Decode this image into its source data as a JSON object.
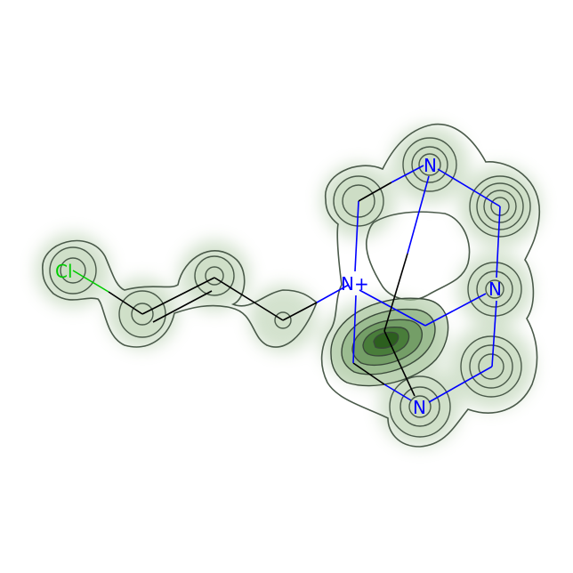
{
  "molecule": {
    "colors": {
      "carbon_bond": "#000000",
      "nitrogen": "#0000ff",
      "chlorine": "#00cc00",
      "density": "#2e6b1e",
      "contour": "#4a5a4a"
    },
    "atoms": [
      {
        "id": "cl",
        "label": "Cl",
        "element": "Cl"
      },
      {
        "id": "n_plus",
        "label": "N+",
        "element": "N"
      },
      {
        "id": "n_top",
        "label": "N",
        "element": "N"
      },
      {
        "id": "n_right",
        "label": "N",
        "element": "N"
      },
      {
        "id": "n_bottom",
        "label": "N",
        "element": "N"
      }
    ]
  }
}
